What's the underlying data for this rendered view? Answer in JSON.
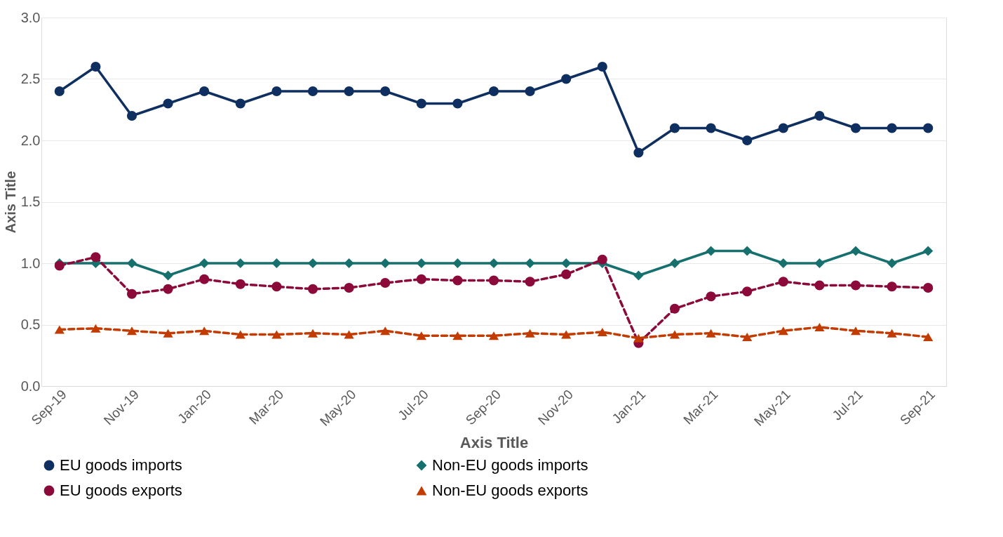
{
  "chart_data": {
    "type": "line",
    "xlabel": "Axis Title",
    "ylabel": "Axis Title",
    "categories": [
      "Sep-19",
      null,
      "Nov-19",
      null,
      "Jan-20",
      null,
      "Mar-20",
      null,
      "May-20",
      null,
      "Jul-20",
      null,
      "Sep-20",
      null,
      "Nov-20",
      null,
      "Jan-21",
      null,
      "Mar-21",
      null,
      "May-21",
      null,
      "Jul-21",
      null,
      "Sep-21"
    ],
    "ylim": [
      0,
      3
    ],
    "yticks": [
      {
        "value": 0,
        "label": "0.0"
      },
      {
        "value": 0.5,
        "label": "0.5"
      },
      {
        "value": 1,
        "label": "1.0"
      },
      {
        "value": 1.5,
        "label": "1.5"
      },
      {
        "value": 2,
        "label": "2.0"
      },
      {
        "value": 2.5,
        "label": "2.5"
      },
      {
        "value": 3,
        "label": "3.0"
      }
    ],
    "grid": "y",
    "legend": "bottom",
    "series": [
      {
        "name": "EU goods imports",
        "color": "#0e2f5f",
        "marker": "circle",
        "line_style": "solid",
        "values": [
          2.4,
          2.6,
          2.2,
          2.3,
          2.4,
          2.3,
          2.4,
          2.4,
          2.4,
          2.4,
          2.3,
          2.3,
          2.4,
          2.4,
          2.5,
          2.6,
          1.9,
          2.1,
          2.1,
          2.0,
          2.1,
          2.2,
          2.1,
          2.1,
          2.1
        ]
      },
      {
        "name": "Non-EU goods imports",
        "color": "#16706e",
        "marker": "diamond",
        "line_style": "solid",
        "values": [
          1.0,
          1.0,
          1.0,
          0.9,
          1.0,
          1.0,
          1.0,
          1.0,
          1.0,
          1.0,
          1.0,
          1.0,
          1.0,
          1.0,
          1.0,
          1.0,
          0.9,
          1.0,
          1.1,
          1.1,
          1.0,
          1.0,
          1.1,
          1.0,
          1.1
        ]
      },
      {
        "name": "EU goods exports",
        "color": "#8b0a3a",
        "marker": "circle",
        "line_style": "dashed",
        "values": [
          0.98,
          1.05,
          0.75,
          0.79,
          0.87,
          0.83,
          0.81,
          0.79,
          0.8,
          0.84,
          0.87,
          0.86,
          0.86,
          0.85,
          0.91,
          1.03,
          0.35,
          0.63,
          0.73,
          0.77,
          0.85,
          0.82,
          0.82,
          0.81,
          0.8
        ]
      },
      {
        "name": "Non-EU goods exports",
        "color": "#c23b00",
        "marker": "triangle",
        "line_style": "dashed",
        "values": [
          0.46,
          0.47,
          0.45,
          0.43,
          0.45,
          0.42,
          0.42,
          0.43,
          0.42,
          0.45,
          0.41,
          0.41,
          0.41,
          0.43,
          0.42,
          0.44,
          0.39,
          0.42,
          0.43,
          0.4,
          0.45,
          0.48,
          0.45,
          0.43,
          0.4
        ]
      }
    ]
  }
}
